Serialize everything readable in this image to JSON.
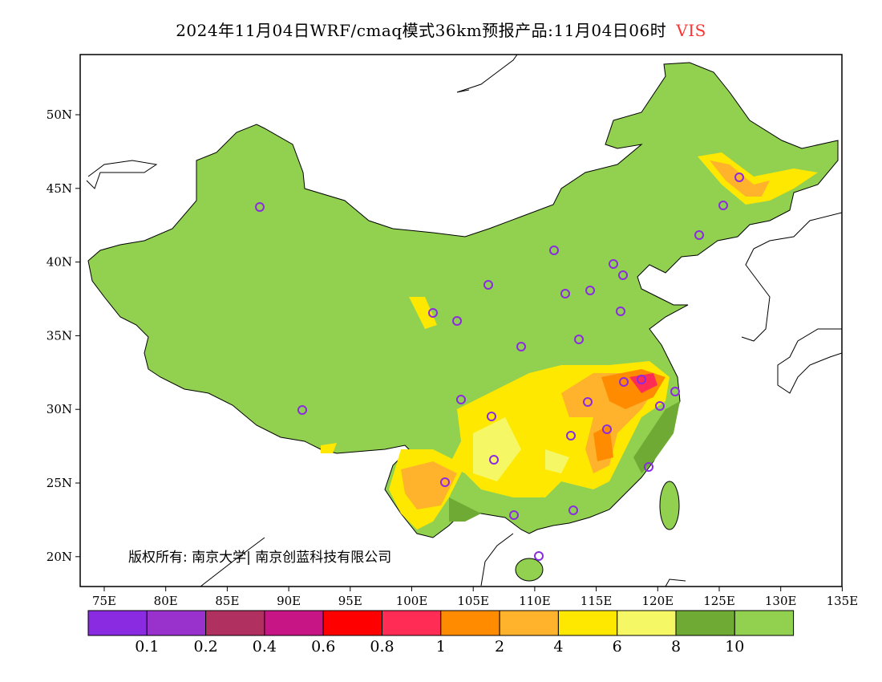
{
  "title": {
    "main": "2024年11月04日WRF/cmaq模式36km预报产品:11月04日06时",
    "variable": "VIS",
    "variable_color": "#ff3333"
  },
  "axes": {
    "lat_labels": [
      "50N",
      "45N",
      "40N",
      "35N",
      "30N",
      "25N",
      "20N"
    ],
    "lon_labels": [
      "75E",
      "80E",
      "85E",
      "90E",
      "95E",
      "100E",
      "105E",
      "110E",
      "115E",
      "120E",
      "125E",
      "130E",
      "135E"
    ]
  },
  "copyright": "版权所有: 南京大学| 南京创蓝科技有限公司",
  "legend": {
    "colors": [
      "#8a2be2",
      "#9932cc",
      "#b03060",
      "#c71585",
      "#ff0000",
      "#ff2d55",
      "#ff8c00",
      "#ffb22b",
      "#ffe800",
      "#f5f764",
      "#6faa35",
      "#92d050"
    ],
    "labels": [
      "0.1",
      "0.2",
      "0.4",
      "0.6",
      "0.8",
      "1",
      "2",
      "4",
      "6",
      "8",
      "10"
    ]
  }
}
